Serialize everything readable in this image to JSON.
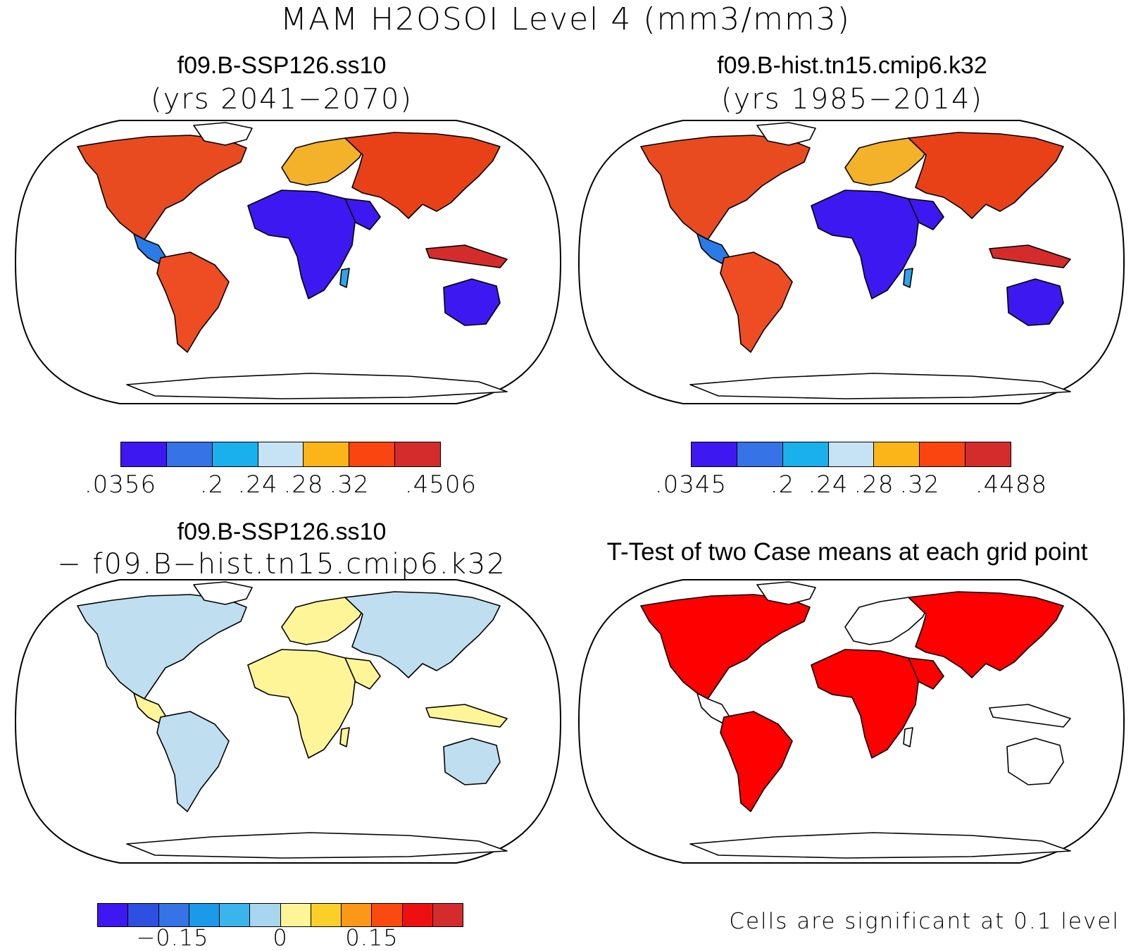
{
  "main_title": "MAM H2OSOI Level 4 (mm3/mm3)",
  "panels": [
    {
      "title": "f09.B-SSP126.ss10",
      "subtitle": "(yrs 2041−2070)"
    },
    {
      "title": "f09.B-hist.tn15.cmip6.k32",
      "subtitle": "(yrs 1985−2014)"
    },
    {
      "title": "f09.B-SSP126.ss10",
      "subtitle": "− f09.B−hist.tn15.cmip6.k32"
    },
    {
      "title": "T-Test of two Case means at each grid point",
      "subtitle": ""
    }
  ],
  "colorbars": {
    "case1": {
      "colors": [
        "#3e18f0",
        "#3573e6",
        "#1ab0ee",
        "#c5e3f4",
        "#fbb518",
        "#fb4510",
        "#d42c2c"
      ],
      "labels": [
        ".0356",
        ".2",
        ".24",
        ".28",
        ".32",
        ".4506"
      ]
    },
    "case2": {
      "colors": [
        "#3e18f0",
        "#3573e6",
        "#1ab0ee",
        "#c5e3f4",
        "#fbb518",
        "#fb4510",
        "#d42c2c"
      ],
      "labels": [
        ".0345",
        ".2",
        ".24",
        ".28",
        ".32",
        ".4488"
      ]
    },
    "diff": {
      "colors": [
        "#3e18f0",
        "#2f4fe0",
        "#3573e6",
        "#1a9ae8",
        "#3bb4ec",
        "#a8d6ef",
        "#fdf597",
        "#fbcf2a",
        "#fb9818",
        "#fb4a10",
        "#ee1010",
        "#d42c2c"
      ],
      "labels": [
        "−0.15",
        "0",
        "0.15"
      ]
    }
  },
  "significance_note": "Cells are significant at 0.1 level",
  "colors": {
    "significant": "#ff0000",
    "coastline": "#000000"
  }
}
